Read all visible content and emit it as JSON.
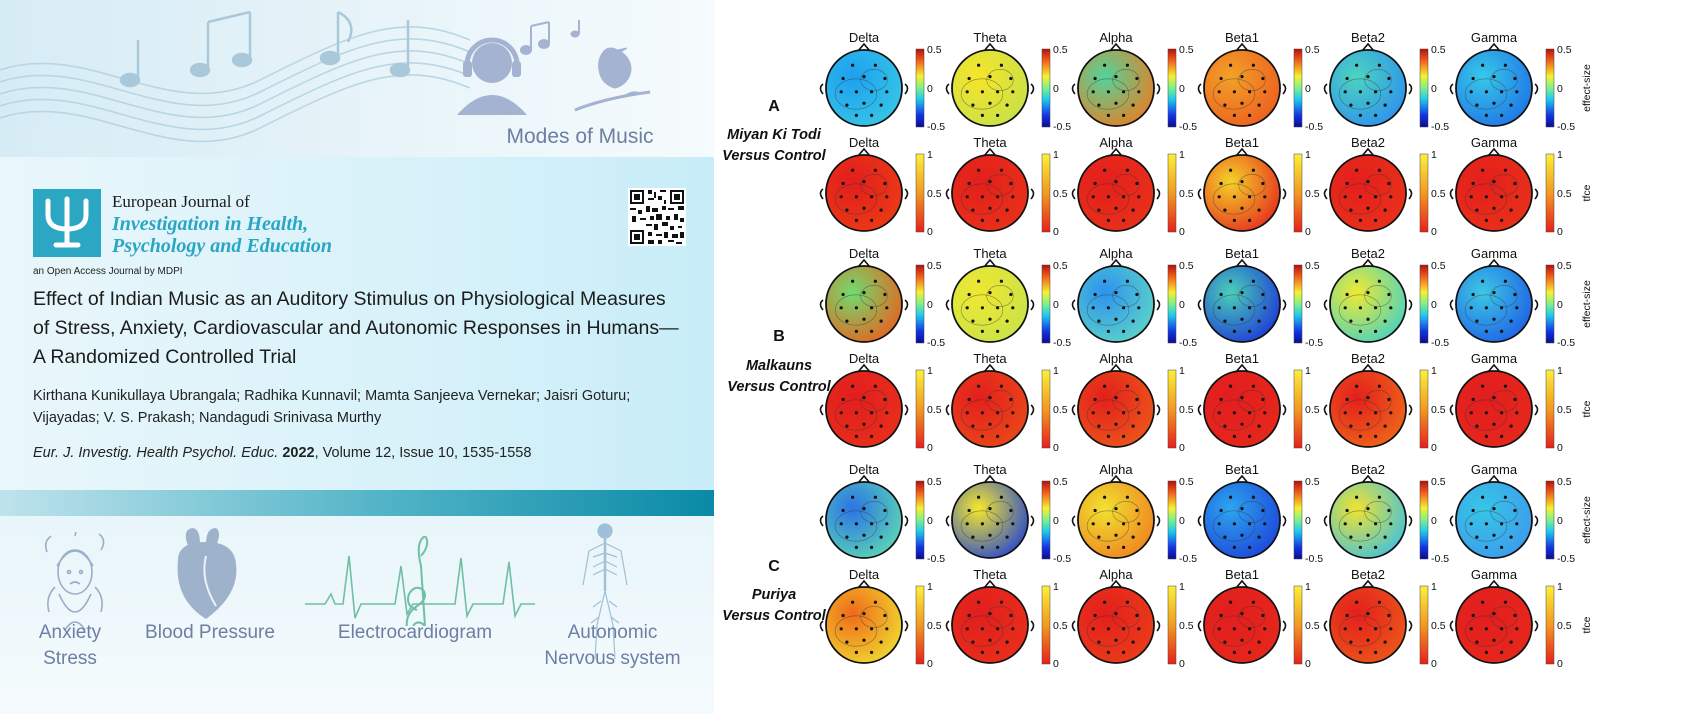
{
  "graphical_abstract": {
    "top": {
      "modes_label": "Modes of Music"
    },
    "journal": {
      "name_line1": "European Journal of",
      "name_line2": "Investigation in Health,",
      "name_line3": "Psychology and Education",
      "publisher_line": "an Open Access Journal by MDPI"
    },
    "paper": {
      "title": "Effect of Indian Music as an Auditory Stimulus on Physiological Measures of Stress, Anxiety, Cardiovascular and Autonomic Responses in Humans—A Randomized Controlled Trial",
      "authors": "Kirthana Kunikullaya Ubrangala; Radhika Kunnavil; Mamta Sanjeeva Vernekar; Jaisri Goturu; Vijayadas; V. S. Prakash; Nandagudi Srinivasa Murthy",
      "citation_journal": "Eur. J. Investig. Health Psychol. Educ.",
      "citation_year": "2022",
      "citation_rest": ", Volume 12, Issue 10, 1535-1558"
    },
    "bottom_items": [
      {
        "label_line1": "Anxiety",
        "label_line2": "Stress",
        "icon": "stressed-woman-icon"
      },
      {
        "label_line1": "Blood Pressure",
        "label_line2": "",
        "icon": "heart-icon"
      },
      {
        "label_line1": "Electrocardiogram",
        "label_line2": "",
        "icon": "ecg-treble-clef-icon"
      },
      {
        "label_line1": "Autonomic",
        "label_line2": "Nervous system",
        "icon": "nervous-system-icon"
      }
    ]
  },
  "figure": {
    "bands": [
      "Delta",
      "Theta",
      "Alpha",
      "Beta1",
      "Beta2",
      "Gamma"
    ],
    "colorbar_effect": {
      "max": "0.5",
      "mid": "0",
      "min": "-0.5",
      "label": "effect-size"
    },
    "colorbar_tfce": {
      "max": "1",
      "mid": "0.5",
      "min": "0",
      "label": "tfce"
    },
    "conditions": [
      {
        "letter": "A",
        "name_line1": "Miyan Ki Todi",
        "name_line2": "Versus Control",
        "effect_colors": [
          [
            "#1e9ff0",
            "#37c9e5"
          ],
          [
            "#f6e52a",
            "#c6e04a"
          ],
          [
            "#53d39a",
            "#ef7a1e"
          ],
          [
            "#f2a228",
            "#ec5a1e"
          ],
          [
            "#4dd4bf",
            "#2b8df0"
          ],
          [
            "#37c8e8",
            "#1d6fe6"
          ]
        ],
        "tfce_colors": [
          [
            "#e21e1e",
            "#ec3c14"
          ],
          [
            "#e41f1c",
            "#e8321a"
          ],
          [
            "#e41f1c",
            "#e8321a"
          ],
          [
            "#f5d22a",
            "#e4251c"
          ],
          [
            "#e41f1c",
            "#e8321a"
          ],
          [
            "#e41f1c",
            "#e8321a"
          ]
        ]
      },
      {
        "letter": "B",
        "name_line1": "Malkauns",
        "name_line2": "Versus Control",
        "effect_colors": [
          [
            "#6fdc6f",
            "#ef5a1a"
          ],
          [
            "#f0e830",
            "#c7e24b"
          ],
          [
            "#2d92ef",
            "#5fd8c6"
          ],
          [
            "#49d0b8",
            "#1b2fd8"
          ],
          [
            "#f0ea32",
            "#3fd0c9"
          ],
          [
            "#3cc8e4",
            "#1d5ae6"
          ]
        ],
        "tfce_colors": [
          [
            "#e21e1e",
            "#e8301a"
          ],
          [
            "#e41f1c",
            "#ea4a1a"
          ],
          [
            "#e41f1c",
            "#ec5a1a"
          ],
          [
            "#e21e1e",
            "#e6281c"
          ],
          [
            "#e41f1c",
            "#ef6a1a"
          ],
          [
            "#e21e1e",
            "#e6281c"
          ]
        ]
      },
      {
        "letter": "C",
        "name_line1": "Puriya",
        "name_line2": "Versus Control",
        "effect_colors": [
          [
            "#2b74e6",
            "#5fdcb0"
          ],
          [
            "#f6e82c",
            "#1c3fd8"
          ],
          [
            "#f1e231",
            "#ef7d1e"
          ],
          [
            "#2ca5ef",
            "#1c40d8"
          ],
          [
            "#f0e331",
            "#39bfe6"
          ],
          [
            "#36c6e6",
            "#3e98ec"
          ]
        ],
        "tfce_colors": [
          [
            "#ef6a1a",
            "#f1e031"
          ],
          [
            "#e21e1e",
            "#e8301a"
          ],
          [
            "#e41f1c",
            "#ea3e1a"
          ],
          [
            "#e21e1e",
            "#e6281c"
          ],
          [
            "#e41f1c",
            "#ec5a1a"
          ],
          [
            "#e21e1e",
            "#e6281c"
          ]
        ]
      }
    ]
  }
}
